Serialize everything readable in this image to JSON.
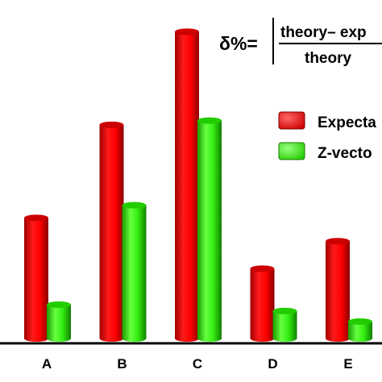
{
  "chart_data": {
    "type": "bar",
    "categories": [
      "A",
      "B",
      "C",
      "D",
      "E"
    ],
    "series": [
      {
        "name": "Expecta",
        "color": "#ff0000",
        "values": [
          28.5,
          50.5,
          72.5,
          16.5,
          23.0
        ]
      },
      {
        "name": "Z-vecto",
        "color": "#22ee00",
        "values": [
          8.0,
          31.5,
          51.5,
          6.5,
          4.0
        ]
      }
    ],
    "ylim": [
      0,
      80
    ],
    "grid": false,
    "legend_position": "right",
    "annotation": {
      "lhs": "δ%=",
      "numerator": "theory– exp",
      "denominator": "theory"
    }
  }
}
